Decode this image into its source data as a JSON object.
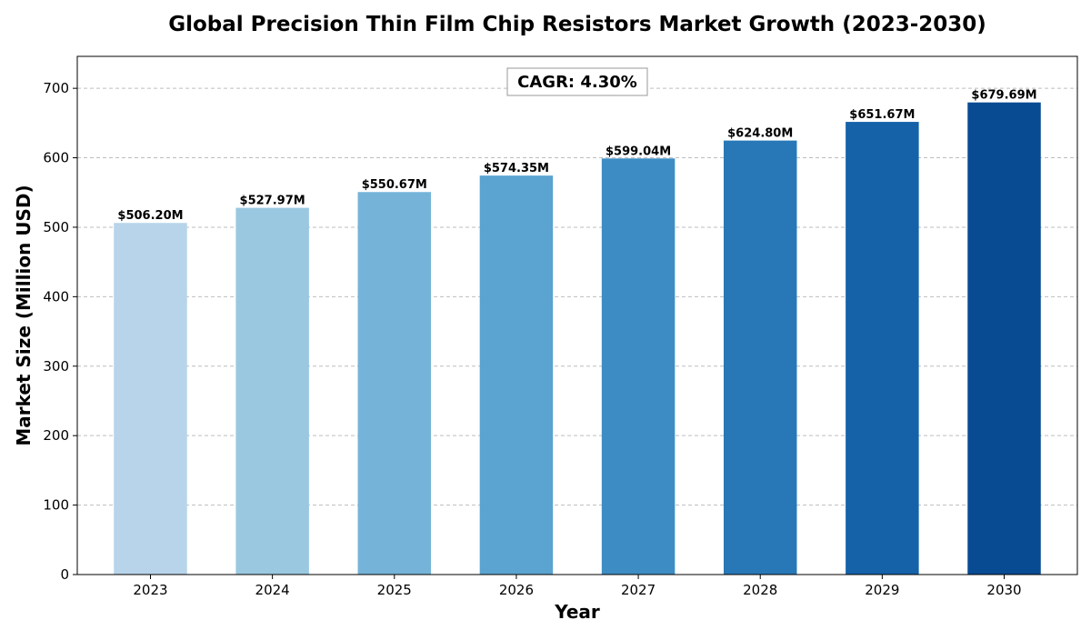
{
  "chart_data": {
    "type": "bar",
    "title": "Global Precision Thin Film Chip Resistors Market Growth (2023-2030)",
    "xlabel": "Year",
    "ylabel": "Market Size (Million USD)",
    "categories": [
      "2023",
      "2024",
      "2025",
      "2026",
      "2027",
      "2028",
      "2029",
      "2030"
    ],
    "values": [
      506.2,
      527.97,
      550.67,
      574.35,
      599.04,
      624.8,
      651.67,
      679.69
    ],
    "data_labels": [
      "$506.20M",
      "$527.97M",
      "$550.67M",
      "$574.35M",
      "$599.04M",
      "$624.80M",
      "$651.67M",
      "$679.69M"
    ],
    "bar_colors": [
      "#b7d4ea",
      "#9ac8e0",
      "#75b4d8",
      "#5ba3d0",
      "#3d8dc4",
      "#2878b8",
      "#1562a9",
      "#084b93"
    ],
    "ylim": [
      0,
      746
    ],
    "yticks": [
      0,
      100,
      200,
      300,
      400,
      500,
      600,
      700
    ],
    "grid": "horizontal-dashed",
    "annotation": "CAGR: 4.30%"
  }
}
